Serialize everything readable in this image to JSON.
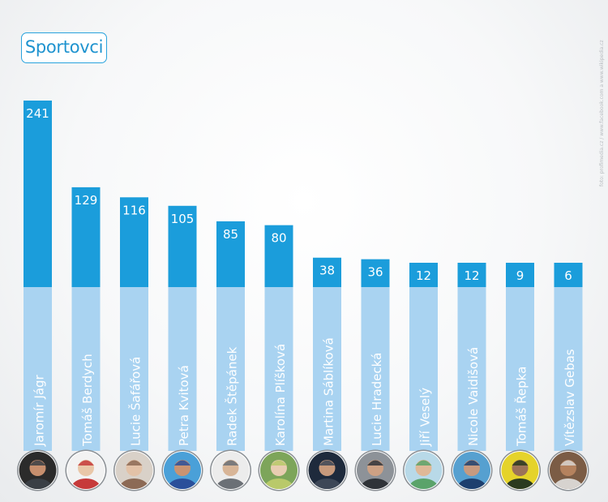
{
  "title": "Sportovci",
  "credit": "foto: profimedia.cz / www.facebook.com  a  www.wikipedia.cz",
  "colors": {
    "bar_top": "#1b9ddb",
    "bar_bottom": "#a9d3f1",
    "value_text": "#ffffff",
    "label_text": "#ffffff"
  },
  "chart_data": {
    "type": "bar",
    "categories": [
      "Jaromír Jágr",
      "Tomáš Berdych",
      "Lucie Šafářová",
      "Petra Kvitová",
      "Radek Štěpánek",
      "Karolína Plíšková",
      "Martina Sáblíková",
      "Lucie Hradecká",
      "Jiří Veselý",
      "Nicole Vaidišová",
      "Tomáš Řepka",
      "Vítězslav Gebas"
    ],
    "values": [
      241,
      129,
      116,
      105,
      85,
      80,
      38,
      36,
      12,
      12,
      9,
      6
    ],
    "ylim": [
      0,
      241
    ],
    "grid": false
  }
}
